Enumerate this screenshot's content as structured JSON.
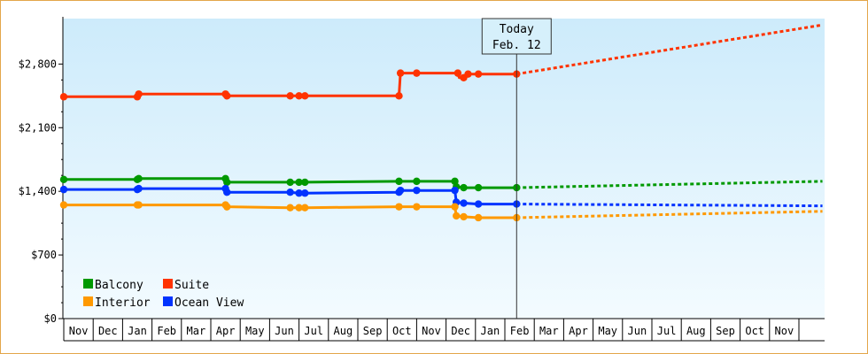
{
  "chart_data": {
    "type": "line",
    "title": "",
    "xlabel": "",
    "ylabel": "",
    "y_ticks": [
      "$0",
      "$700",
      "$1,400",
      "$2,100",
      "$2,800"
    ],
    "ylim": [
      0,
      3300
    ],
    "x_ticks": [
      "Nov",
      "Dec",
      "Jan",
      "Feb",
      "Mar",
      "Apr",
      "May",
      "Jun",
      "Jul",
      "Aug",
      "Sep",
      "Oct",
      "Nov",
      "Dec",
      "Jan",
      "Feb",
      "Mar",
      "Apr",
      "May",
      "Jun",
      "Jul",
      "Aug",
      "Sep",
      "Oct",
      "Nov"
    ],
    "x_range": [
      "Nov",
      "Nov"
    ],
    "today_marker": {
      "line1": "Today",
      "line2": "Feb. 12",
      "x_month_index": 15.4
    },
    "legend_position": "bottom-left",
    "grid": false,
    "series": [
      {
        "name": "Suite",
        "color": "#ff3300",
        "points": [
          [
            0,
            2440
          ],
          [
            2.5,
            2440
          ],
          [
            2.55,
            2470
          ],
          [
            5.5,
            2470
          ],
          [
            5.55,
            2450
          ],
          [
            7.7,
            2450
          ],
          [
            8.0,
            2450
          ],
          [
            8.2,
            2450
          ],
          [
            11.4,
            2450
          ],
          [
            11.45,
            2700
          ],
          [
            12.0,
            2700
          ],
          [
            13.4,
            2700
          ],
          [
            13.45,
            2650
          ],
          [
            13.6,
            2650
          ],
          [
            13.75,
            2690
          ],
          [
            14.1,
            2690
          ],
          [
            15.4,
            2690
          ]
        ],
        "markers": [
          0,
          2.5,
          2.55,
          5.5,
          5.55,
          7.7,
          8.0,
          8.2,
          11.4,
          11.45,
          12.0,
          13.4,
          13.6,
          13.75,
          14.1,
          15.4
        ],
        "forecast": [
          [
            15.4,
            2690
          ],
          [
            25.8,
            3230
          ]
        ]
      },
      {
        "name": "Balcony",
        "color": "#009900",
        "points": [
          [
            0,
            1530
          ],
          [
            2.5,
            1530
          ],
          [
            2.55,
            1540
          ],
          [
            5.5,
            1540
          ],
          [
            5.55,
            1500
          ],
          [
            7.7,
            1500
          ],
          [
            8.0,
            1500
          ],
          [
            8.2,
            1500
          ],
          [
            11.4,
            1510
          ],
          [
            12.0,
            1510
          ],
          [
            13.3,
            1510
          ],
          [
            13.35,
            1450
          ],
          [
            13.6,
            1440
          ],
          [
            14.1,
            1440
          ],
          [
            15.4,
            1440
          ]
        ],
        "markers": [
          0,
          2.5,
          2.55,
          5.5,
          5.55,
          7.7,
          8.0,
          8.2,
          11.4,
          12.0,
          13.3,
          13.35,
          13.6,
          14.1,
          15.4
        ],
        "forecast": [
          [
            15.4,
            1440
          ],
          [
            25.8,
            1510
          ]
        ]
      },
      {
        "name": "Ocean View",
        "color": "#0033ff",
        "points": [
          [
            0,
            1420
          ],
          [
            2.5,
            1420
          ],
          [
            2.55,
            1430
          ],
          [
            5.5,
            1430
          ],
          [
            5.55,
            1390
          ],
          [
            7.7,
            1390
          ],
          [
            8.0,
            1380
          ],
          [
            8.2,
            1380
          ],
          [
            11.4,
            1390
          ],
          [
            11.45,
            1410
          ],
          [
            12.0,
            1410
          ],
          [
            13.3,
            1410
          ],
          [
            13.35,
            1280
          ],
          [
            13.6,
            1270
          ],
          [
            14.1,
            1260
          ],
          [
            15.4,
            1260
          ]
        ],
        "markers": [
          0,
          2.5,
          2.55,
          5.5,
          5.55,
          7.7,
          8.0,
          8.2,
          11.4,
          11.45,
          12.0,
          13.3,
          13.35,
          13.6,
          14.1,
          15.4
        ],
        "forecast": [
          [
            15.4,
            1260
          ],
          [
            25.8,
            1240
          ]
        ]
      },
      {
        "name": "Interior",
        "color": "#ff9900",
        "points": [
          [
            0,
            1250
          ],
          [
            2.5,
            1250
          ],
          [
            2.55,
            1250
          ],
          [
            5.5,
            1250
          ],
          [
            5.55,
            1230
          ],
          [
            7.7,
            1220
          ],
          [
            8.0,
            1220
          ],
          [
            8.2,
            1220
          ],
          [
            11.4,
            1230
          ],
          [
            12.0,
            1230
          ],
          [
            13.3,
            1230
          ],
          [
            13.35,
            1130
          ],
          [
            13.6,
            1120
          ],
          [
            14.1,
            1110
          ],
          [
            15.4,
            1110
          ]
        ],
        "markers": [
          0,
          2.5,
          2.55,
          5.5,
          5.55,
          7.7,
          8.0,
          8.2,
          11.4,
          12.0,
          13.3,
          13.35,
          13.6,
          14.1,
          15.4
        ],
        "forecast": [
          [
            15.4,
            1110
          ],
          [
            25.8,
            1180
          ]
        ]
      }
    ],
    "legend": [
      {
        "name": "Balcony",
        "color": "#009900"
      },
      {
        "name": "Suite",
        "color": "#ff3300"
      },
      {
        "name": "Interior",
        "color": "#ff9900"
      },
      {
        "name": "Ocean View",
        "color": "#0033ff"
      }
    ]
  }
}
